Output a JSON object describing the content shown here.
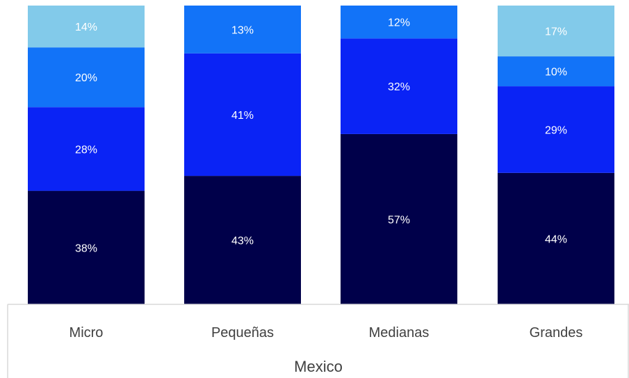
{
  "chart_data": {
    "type": "bar",
    "stacked": true,
    "categories": [
      "Micro",
      "Pequeñas",
      "Medianas",
      "Grandes"
    ],
    "group_label": "Mexico",
    "series": [
      {
        "values": [
          38,
          43,
          57,
          44
        ],
        "color": "#00004A"
      },
      {
        "values": [
          28,
          41,
          32,
          29
        ],
        "color": "#0A23F5"
      },
      {
        "values": [
          20,
          13,
          12,
          10
        ],
        "color": "#1273F8"
      },
      {
        "values": [
          14,
          null,
          null,
          17
        ],
        "color": "#82CAEA"
      }
    ],
    "value_labels": [
      [
        "38%",
        "28%",
        "20%",
        "14%"
      ],
      [
        "43%",
        "41%",
        "13%",
        null
      ],
      [
        "57%",
        "32%",
        "12%",
        null
      ],
      [
        "44%",
        "29%",
        "10%",
        "17%"
      ]
    ],
    "ylim": [
      0,
      100
    ],
    "axis_line_color": "#D9D9D9"
  }
}
